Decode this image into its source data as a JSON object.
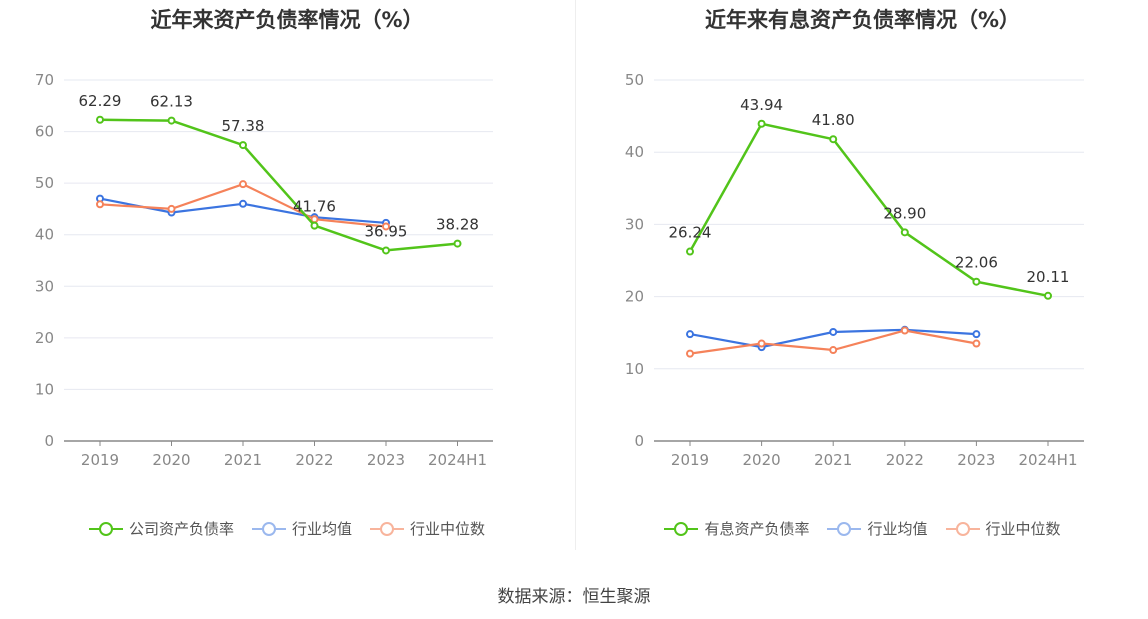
{
  "source": "数据来源：恒生聚源",
  "chart_data": [
    {
      "type": "line",
      "title": "近年来资产负债率情况（%）",
      "categories": [
        "2019",
        "2020",
        "2021",
        "2022",
        "2023",
        "2024H1"
      ],
      "ylim": [
        0,
        70
      ],
      "yticks": [
        0,
        10,
        20,
        30,
        40,
        50,
        60,
        70
      ],
      "grid": true,
      "legend_position": "bottom",
      "series": [
        {
          "name": "公司资产负债率",
          "color": "#52c41a",
          "values": [
            62.29,
            62.13,
            57.38,
            41.76,
            36.95,
            38.28
          ],
          "show_labels": true
        },
        {
          "name": "行业均值",
          "color": "#3b74e0",
          "values": [
            47.0,
            44.3,
            46.0,
            43.4,
            42.3,
            null
          ],
          "show_labels": false
        },
        {
          "name": "行业中位数",
          "color": "#f5825a",
          "values": [
            45.9,
            45.0,
            49.8,
            43.0,
            41.6,
            null
          ],
          "show_labels": false
        }
      ]
    },
    {
      "type": "line",
      "title": "近年来有息资产负债率情况（%）",
      "categories": [
        "2019",
        "2020",
        "2021",
        "2022",
        "2023",
        "2024H1"
      ],
      "ylim": [
        0,
        50
      ],
      "yticks": [
        0,
        10,
        20,
        30,
        40,
        50
      ],
      "grid": true,
      "legend_position": "bottom",
      "series": [
        {
          "name": "有息资产负债率",
          "color": "#52c41a",
          "values": [
            26.24,
            43.94,
            41.8,
            28.9,
            22.06,
            20.11
          ],
          "show_labels": true
        },
        {
          "name": "行业均值",
          "color": "#3b74e0",
          "values": [
            14.8,
            13.0,
            15.1,
            15.4,
            14.8,
            null
          ],
          "show_labels": false
        },
        {
          "name": "行业中位数",
          "color": "#f5825a",
          "values": [
            12.1,
            13.5,
            12.6,
            15.3,
            13.5,
            null
          ],
          "show_labels": false
        }
      ]
    }
  ]
}
